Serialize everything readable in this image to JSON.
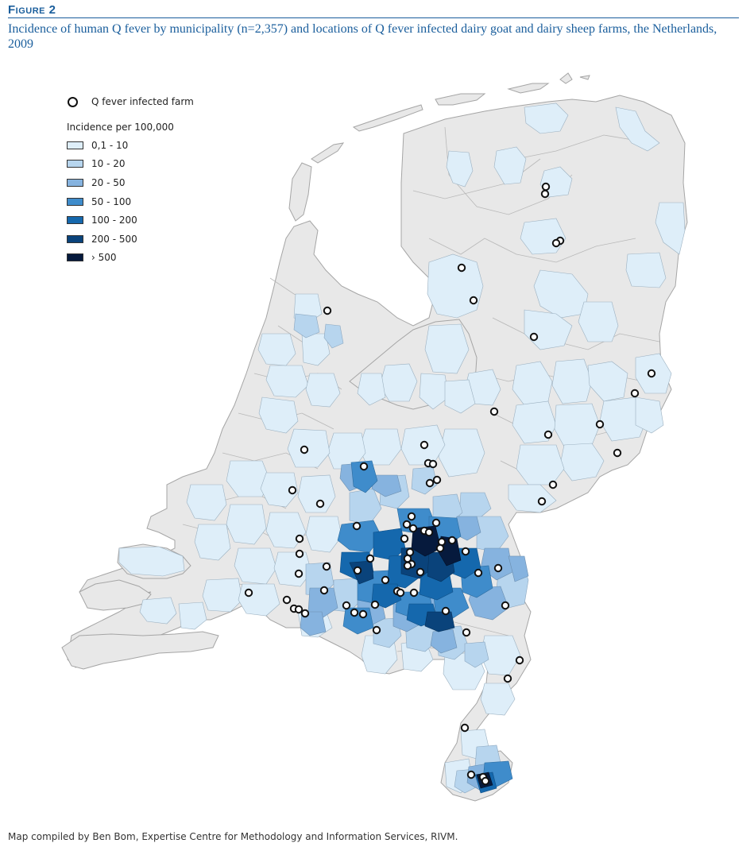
{
  "figure": {
    "label": "Figure 2",
    "caption": "Incidence of human Q fever by municipality (n=2,357) and locations of Q fever infected dairy goat and dairy sheep farms, the Netherlands, 2009"
  },
  "legend": {
    "farm_label": "Q fever infected farm",
    "incidence_title": "Incidence per 100,000",
    "classes": [
      {
        "label": "0,1 - 10",
        "color": "#deeef9"
      },
      {
        "label": "10 - 20",
        "color": "#b7d5ee"
      },
      {
        "label": "20 - 50",
        "color": "#86b3df"
      },
      {
        "label": "50 - 100",
        "color": "#3f8ccb"
      },
      {
        "label": "100 - 200",
        "color": "#1568ad"
      },
      {
        "label": "200 - 500",
        "color": "#0a437b"
      },
      {
        "label": "› 500",
        "color": "#061a3d"
      }
    ]
  },
  "map": {
    "base_color": "#e8e8e8",
    "border_color": "#a8a8a8"
  },
  "source": "Map compiled by Ben Bom, Expertise Centre for Methodology and Information Services, RIVM."
}
